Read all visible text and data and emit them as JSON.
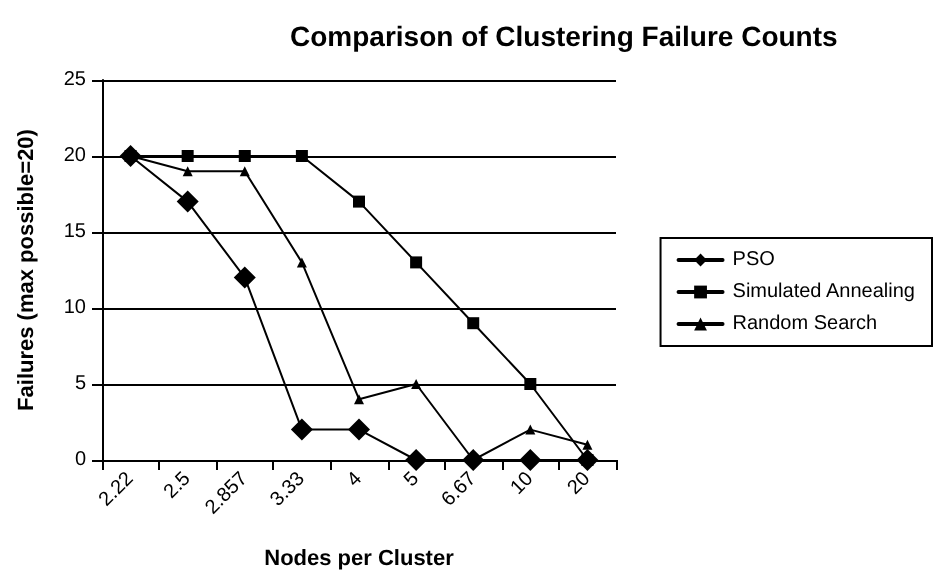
{
  "chart_data": {
    "type": "line",
    "title": "Comparison of Clustering Failure Counts",
    "xlabel": "Nodes per Cluster",
    "ylabel": "Failures (max possible=20)",
    "categories": [
      "2.22",
      "2.5",
      "2.857",
      "3.33",
      "4",
      "5",
      "6.67",
      "10",
      "20"
    ],
    "series": [
      {
        "name": "PSO",
        "color": "#000000",
        "marker": "diamond",
        "values": [
          20,
          17,
          12,
          2,
          2,
          0,
          0,
          0,
          0
        ]
      },
      {
        "name": "Simulated Annealing",
        "color": "#000000",
        "marker": "square",
        "values": [
          20,
          20,
          20,
          20,
          17,
          13,
          9,
          5,
          0
        ]
      },
      {
        "name": "Random Search",
        "color": "#000000",
        "marker": "triangle",
        "values": [
          20,
          19,
          19,
          13,
          4,
          5,
          0,
          2,
          1
        ]
      }
    ],
    "ylim": [
      0,
      25
    ],
    "yticks": [
      0,
      5,
      10,
      15,
      20,
      25
    ],
    "grid": "y",
    "legend": "right",
    "line_style": "solid"
  }
}
